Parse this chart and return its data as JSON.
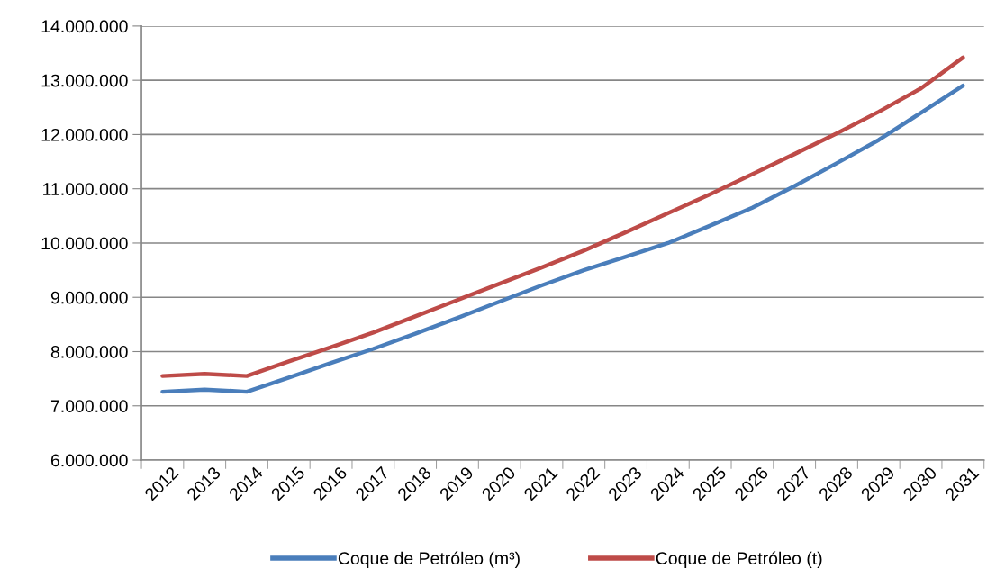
{
  "chart_data": {
    "type": "line",
    "categories": [
      "2012",
      "2013",
      "2014",
      "2015",
      "2016",
      "2017",
      "2018",
      "2019",
      "2020",
      "2021",
      "2022",
      "2023",
      "2024",
      "2025",
      "2026",
      "2027",
      "2028",
      "2029",
      "2030",
      "2031"
    ],
    "series": [
      {
        "name": "Coque de Petróleo (m³)",
        "color": "#4a7ebb",
        "values": [
          7260000,
          7300000,
          7260000,
          7520000,
          7790000,
          8050000,
          8330000,
          8620000,
          8920000,
          9220000,
          9500000,
          9750000,
          10000000,
          10320000,
          10650000,
          11050000,
          11470000,
          11900000,
          12400000,
          12900000
        ]
      },
      {
        "name": "Coque de Petróleo (t)",
        "color": "#be4b48",
        "values": [
          7550000,
          7590000,
          7550000,
          7820000,
          8080000,
          8350000,
          8650000,
          8950000,
          9250000,
          9550000,
          9860000,
          10200000,
          10550000,
          10900000,
          11270000,
          11640000,
          12020000,
          12420000,
          12850000,
          13420000
        ]
      }
    ],
    "ylim": [
      6000000,
      14000000
    ],
    "yticks": [
      {
        "value": 6000000,
        "label": "6.000.000"
      },
      {
        "value": 7000000,
        "label": "7.000.000"
      },
      {
        "value": 8000000,
        "label": "8.000.000"
      },
      {
        "value": 9000000,
        "label": "9.000.000"
      },
      {
        "value": 10000000,
        "label": "10.000.000"
      },
      {
        "value": 11000000,
        "label": "11.000.000"
      },
      {
        "value": 12000000,
        "label": "12.000.000"
      },
      {
        "value": 13000000,
        "label": "13.000.000"
      },
      {
        "value": 14000000,
        "label": "14.000.000"
      }
    ],
    "grid": "y",
    "legend": "bottom",
    "marker": "none",
    "line_style": "solid"
  }
}
